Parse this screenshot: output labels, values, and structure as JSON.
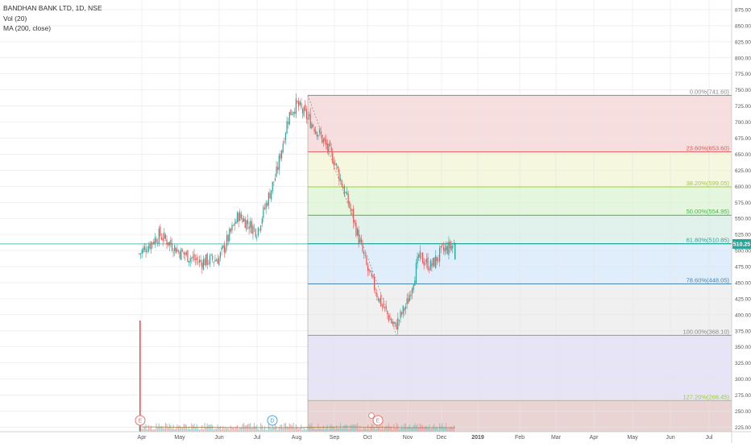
{
  "legend": {
    "symbol": "BANDHAN BANK LTD, 1D, NSE",
    "volume": "Vol (20)",
    "ma": "MA (200, close)"
  },
  "price_label": "510.25",
  "chart_data": {
    "type": "candlestick",
    "x_ticks": [
      "Apr",
      "May",
      "Jun",
      "Jul",
      "Aug",
      "Sep",
      "Oct",
      "Nov",
      "Dec",
      "2019",
      "Feb",
      "Mar",
      "Apr",
      "May",
      "Jun",
      "Jul"
    ],
    "y_ticks": [
      225,
      250,
      275,
      300,
      325,
      350,
      375,
      400,
      425,
      450,
      475,
      500,
      525,
      550,
      575,
      600,
      625,
      650,
      675,
      700,
      725,
      750,
      775,
      800,
      825,
      850,
      875
    ],
    "ylim": [
      218,
      890
    ],
    "current_price": 510.25,
    "fib_levels": [
      {
        "label": "0.00%(741.60)",
        "value": 741.6,
        "color": "#8a8a8a",
        "fill": "#f7dcdc"
      },
      {
        "label": "23.60%(653.60)",
        "value": 653.6,
        "color": "#e35555",
        "fill": "#f4f7dc"
      },
      {
        "label": "38.20%(599.05)",
        "value": 599.05,
        "color": "#9ccc3a",
        "fill": "#e4f5dc"
      },
      {
        "label": "50.00%(554.95)",
        "value": 554.95,
        "color": "#4caf50",
        "fill": "#dff1ec"
      },
      {
        "label": "61.80%(510.85)",
        "value": 510.85,
        "color": "#26a69a",
        "fill": "#deecfa"
      },
      {
        "label": "78.60%(448.05)",
        "value": 448.05,
        "color": "#4a86b5",
        "fill": "#efefef"
      },
      {
        "label": "100.00%(368.10)",
        "value": 368.1,
        "color": "#8a8a8a",
        "fill": "#e6e3f7"
      },
      {
        "label": "127.20%(266.45)",
        "value": 266.45,
        "color": "#9ccc3a",
        "fill": "#e9d3d3"
      }
    ],
    "anchors": [
      {
        "date": "Apr",
        "close": 495
      },
      {
        "date": "mid Apr",
        "close": 525
      },
      {
        "date": "May",
        "close": 498
      },
      {
        "date": "mid May",
        "close": 482
      },
      {
        "date": "Jun",
        "close": 488
      },
      {
        "date": "mid Jun",
        "close": 555
      },
      {
        "date": "Jul",
        "close": 530
      },
      {
        "date": "mid Jul",
        "close": 620
      },
      {
        "date": "late Jul",
        "close": 710
      },
      {
        "date": "Aug",
        "close": 728
      },
      {
        "date": "mid Aug",
        "close": 690
      },
      {
        "date": "Sep",
        "close": 640
      },
      {
        "date": "mid Sep",
        "close": 560
      },
      {
        "date": "Oct",
        "close": 470
      },
      {
        "date": "mid Oct",
        "close": 420
      },
      {
        "date": "late Oct",
        "close": 380
      },
      {
        "date": "Nov",
        "close": 420
      },
      {
        "date": "mid Nov",
        "close": 490
      },
      {
        "date": "late Nov",
        "close": 475
      },
      {
        "date": "Dec",
        "close": 498
      },
      {
        "date": "mid Dec",
        "close": 510
      }
    ],
    "volume_spike": {
      "date": "Mar 27 2018",
      "level": 0.9
    },
    "events": [
      {
        "label": "E",
        "date": "Apr",
        "color": "#e57373"
      },
      {
        "label": "D",
        "date": "Jul",
        "color": "#42a5f5"
      },
      {
        "label": "E",
        "date": "Oct",
        "color": "#e57373"
      }
    ]
  }
}
